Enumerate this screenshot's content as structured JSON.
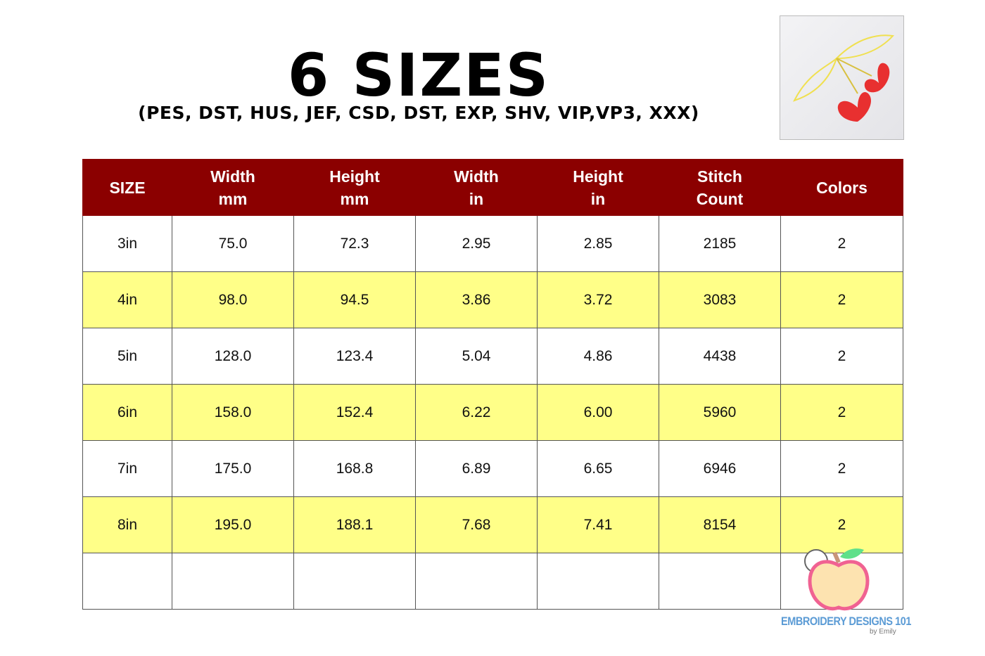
{
  "header": {
    "title": "6 SIZES",
    "subtitle": "(PES, DST, HUS, JEF, CSD, DST, EXP, SHV, VIP,VP3, XXX)"
  },
  "table": {
    "columns": [
      [
        "SIZE",
        ""
      ],
      [
        "Width",
        "mm"
      ],
      [
        "Height",
        "mm"
      ],
      [
        "Width",
        "in"
      ],
      [
        "Height",
        "in"
      ],
      [
        "Stitch",
        "Count"
      ],
      [
        "Colors",
        ""
      ]
    ],
    "rows": [
      [
        "3in",
        "75.0",
        "72.3",
        "2.95",
        "2.85",
        "2185",
        "2"
      ],
      [
        "4in",
        "98.0",
        "94.5",
        "3.86",
        "3.72",
        "3083",
        "2"
      ],
      [
        "5in",
        "128.0",
        "123.4",
        "5.04",
        "4.86",
        "4438",
        "2"
      ],
      [
        "6in",
        "158.0",
        "152.4",
        "6.22",
        "6.00",
        "5960",
        "2"
      ],
      [
        "7in",
        "175.0",
        "168.8",
        "6.89",
        "6.65",
        "6946",
        "2"
      ],
      [
        "8in",
        "195.0",
        "188.1",
        "7.68",
        "7.41",
        "8154",
        "2"
      ],
      [
        "",
        "",
        "",
        "",
        "",
        "",
        ""
      ]
    ]
  },
  "colors": {
    "header_bg": "#8b0000",
    "stripe": "#ffff88"
  },
  "logo": {
    "name": "EMBROIDERY DESIGNS 101",
    "by": "by Emily"
  }
}
